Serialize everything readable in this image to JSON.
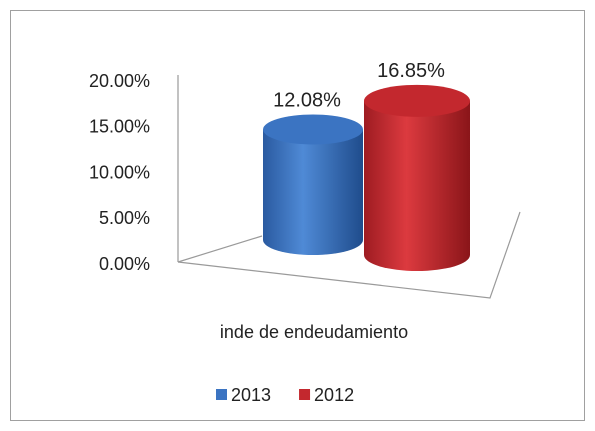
{
  "chart_data": {
    "type": "bar3d",
    "categories": [
      "inde de endeudamiento"
    ],
    "series": [
      {
        "name": "2013",
        "color": "#3b74c2",
        "values": [
          12.08
        ],
        "value_labels": [
          "12.08%"
        ]
      },
      {
        "name": "2012",
        "color": "#c3282e",
        "values": [
          16.85
        ],
        "value_labels": [
          "16.85%"
        ]
      }
    ],
    "ylim": [
      0,
      20
    ],
    "yticks": [
      {
        "value": 0,
        "label": "0.00%"
      },
      {
        "value": 5,
        "label": "5.00%"
      },
      {
        "value": 10,
        "label": "10.00%"
      },
      {
        "value": 15,
        "label": "15.00%"
      },
      {
        "value": 20,
        "label": "20.00%"
      }
    ],
    "legend": "bottom"
  }
}
